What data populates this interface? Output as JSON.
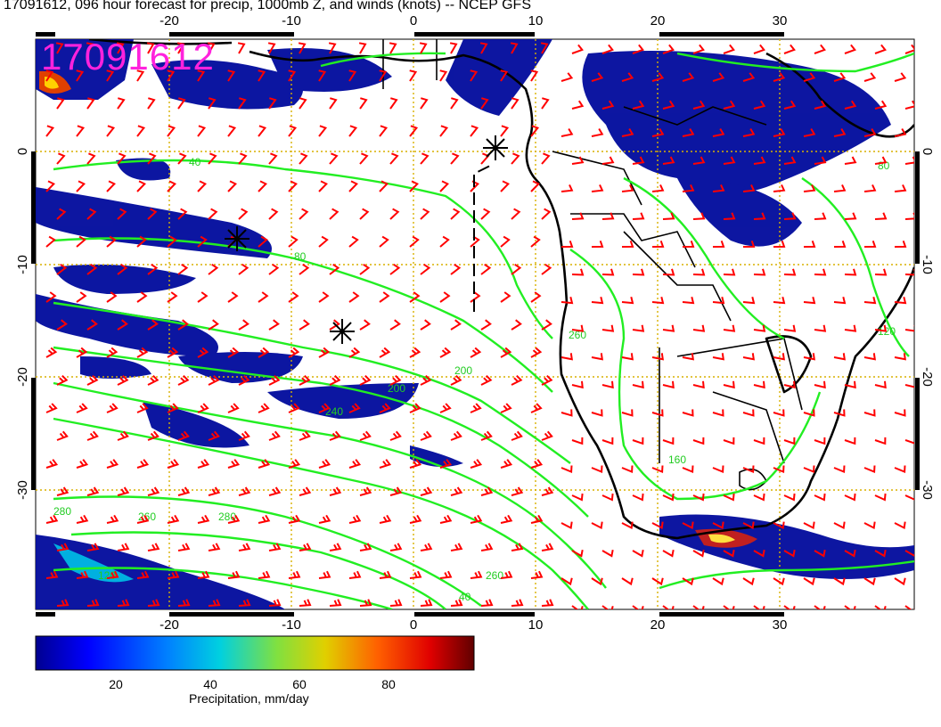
{
  "header": {
    "title": "17091612, 096 hour forecast for precip, 1000mb Z, and winds (knots) -- NCEP GFS",
    "stamp": "17091612"
  },
  "axes": {
    "lon_labels": [
      "-20",
      "-10",
      "0",
      "10",
      "20",
      "30"
    ],
    "lat_labels": [
      "0",
      "-10",
      "-20",
      "-30"
    ],
    "lon_range": [
      -30,
      40
    ],
    "lat_range": [
      -40,
      10
    ]
  },
  "contours": {
    "color": "#22ee22",
    "labels": [
      "40",
      "80",
      "120",
      "160",
      "200",
      "240",
      "280",
      "260",
      "200",
      "160",
      "120",
      "80",
      "40"
    ]
  },
  "wind_barbs": {
    "color": "#ff0000"
  },
  "colorbar": {
    "title": "Precipitation, mm/day",
    "ticks": [
      "20",
      "40",
      "60",
      "80"
    ],
    "colors": [
      "#000090",
      "#0000ff",
      "#0060ff",
      "#00c0ff",
      "#20e0c0",
      "#80e040",
      "#e0d000",
      "#ff6000",
      "#e00000",
      "#600000"
    ]
  },
  "markers": {
    "symbol": "asterisk",
    "count": 3
  }
}
